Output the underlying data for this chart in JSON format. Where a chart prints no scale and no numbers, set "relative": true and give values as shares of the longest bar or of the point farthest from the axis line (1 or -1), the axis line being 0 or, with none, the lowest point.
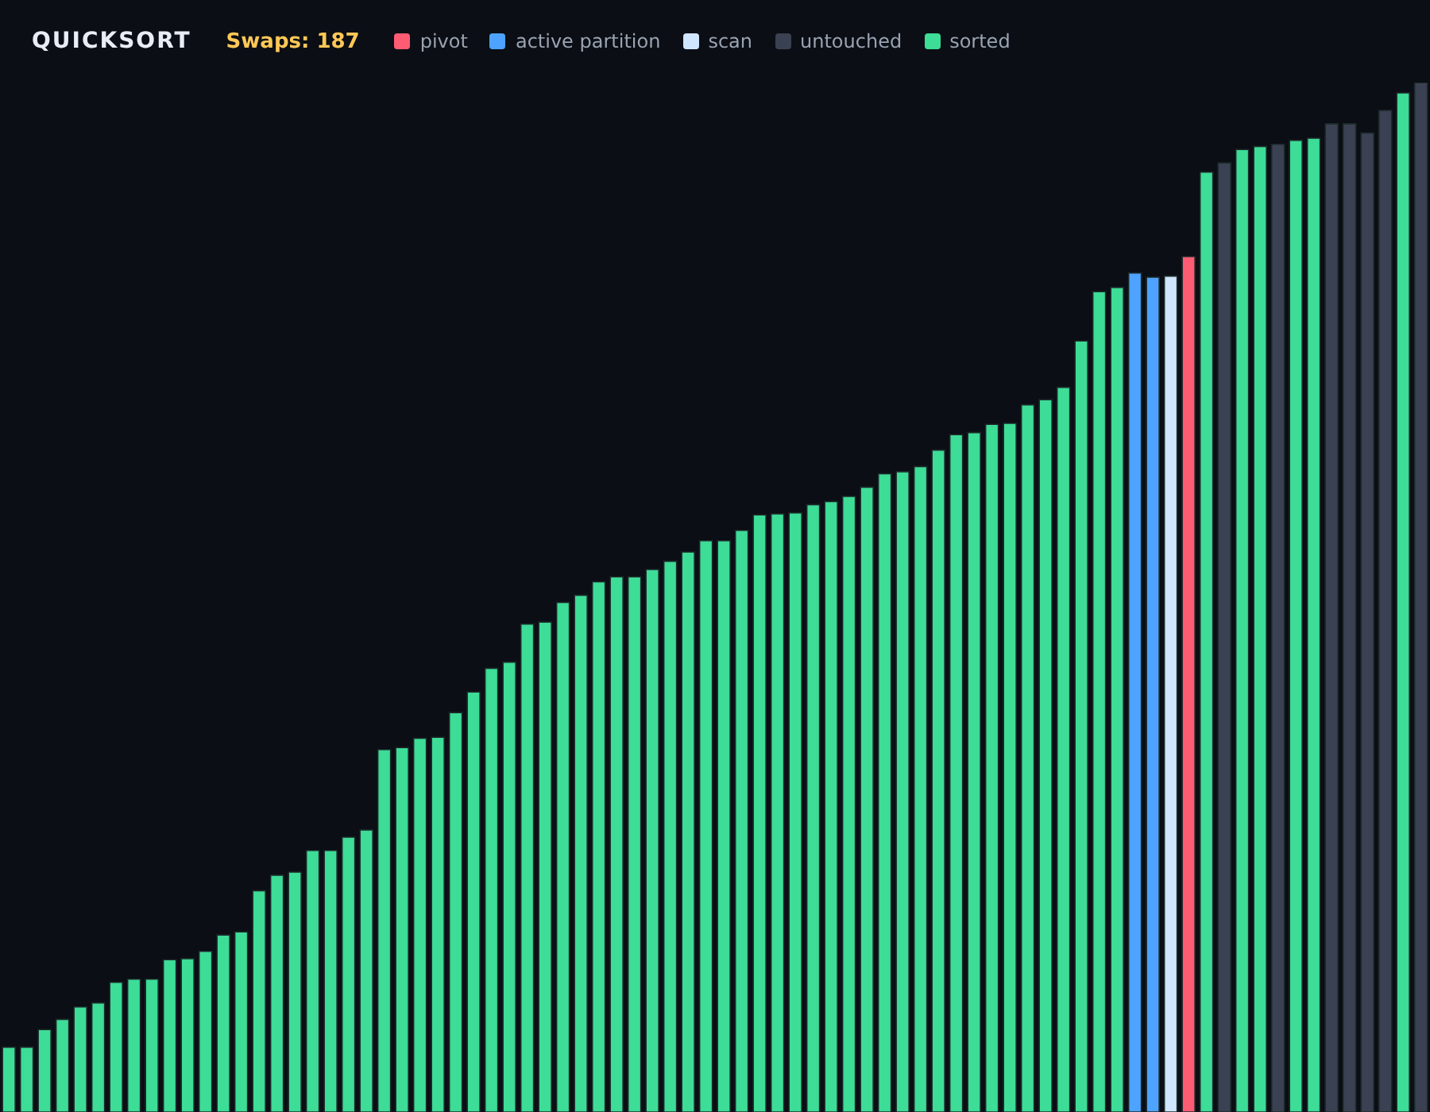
{
  "chart_data": {
    "type": "bar",
    "title": "QUICKSORT",
    "subtitle": "Swaps: 187",
    "relative": true,
    "stacked": true,
    "legend": "top left",
    "categories": [
      null,
      null,
      null,
      null,
      null,
      null,
      null,
      null,
      null,
      null,
      null,
      null,
      null,
      null,
      null,
      null,
      null,
      null,
      null,
      null,
      null,
      null,
      null,
      null,
      null,
      null,
      null,
      null,
      null,
      null,
      null,
      null,
      null,
      null,
      null,
      null,
      null,
      null,
      null,
      null,
      null,
      null,
      null,
      null,
      null,
      null,
      null,
      null,
      null,
      null,
      null,
      null,
      null,
      null,
      null,
      null,
      null,
      null,
      null,
      null,
      null,
      null,
      null,
      null,
      null,
      null,
      null,
      null,
      null,
      null,
      null,
      null,
      null,
      null,
      null,
      null,
      null,
      null,
      null,
      null
    ],
    "series": [
      {
        "name": "pivot",
        "color": "#ff5c74",
        "values": [
          null,
          null,
          null,
          null,
          null,
          null,
          null,
          null,
          null,
          null,
          null,
          null,
          null,
          null,
          null,
          null,
          null,
          null,
          null,
          null,
          null,
          null,
          null,
          null,
          null,
          null,
          null,
          null,
          null,
          null,
          null,
          null,
          null,
          null,
          null,
          null,
          null,
          null,
          null,
          null,
          null,
          null,
          null,
          null,
          null,
          null,
          null,
          null,
          null,
          null,
          null,
          null,
          null,
          null,
          null,
          null,
          null,
          null,
          null,
          null,
          null,
          null,
          null,
          null,
          null,
          null,
          0.831,
          null,
          null,
          null,
          null,
          null,
          null,
          null,
          null,
          null,
          null,
          null,
          null,
          null
        ]
      },
      {
        "name": "active partition",
        "color": "#4da3ff",
        "values": [
          null,
          null,
          null,
          null,
          null,
          null,
          null,
          null,
          null,
          null,
          null,
          null,
          null,
          null,
          null,
          null,
          null,
          null,
          null,
          null,
          null,
          null,
          null,
          null,
          null,
          null,
          null,
          null,
          null,
          null,
          null,
          null,
          null,
          null,
          null,
          null,
          null,
          null,
          null,
          null,
          null,
          null,
          null,
          null,
          null,
          null,
          null,
          null,
          null,
          null,
          null,
          null,
          null,
          null,
          null,
          null,
          null,
          null,
          null,
          null,
          null,
          null,
          null,
          0.815,
          0.811,
          null,
          null,
          null,
          null,
          null,
          null,
          null,
          null,
          null,
          null,
          null,
          null,
          null,
          null,
          null
        ]
      },
      {
        "name": "scan",
        "color": "#d0e6ff",
        "values": [
          null,
          null,
          null,
          null,
          null,
          null,
          null,
          null,
          null,
          null,
          null,
          null,
          null,
          null,
          null,
          null,
          null,
          null,
          null,
          null,
          null,
          null,
          null,
          null,
          null,
          null,
          null,
          null,
          null,
          null,
          null,
          null,
          null,
          null,
          null,
          null,
          null,
          null,
          null,
          null,
          null,
          null,
          null,
          null,
          null,
          null,
          null,
          null,
          null,
          null,
          null,
          null,
          null,
          null,
          null,
          null,
          null,
          null,
          null,
          null,
          null,
          null,
          null,
          null,
          null,
          0.812,
          null,
          null,
          null,
          null,
          null,
          null,
          null,
          null,
          null,
          null,
          null,
          null,
          null,
          null
        ]
      },
      {
        "name": "untouched",
        "color": "#3a4152",
        "values": [
          null,
          null,
          null,
          null,
          null,
          null,
          null,
          null,
          null,
          null,
          null,
          null,
          null,
          null,
          null,
          null,
          null,
          null,
          null,
          null,
          null,
          null,
          null,
          null,
          null,
          null,
          null,
          null,
          null,
          null,
          null,
          null,
          null,
          null,
          null,
          null,
          null,
          null,
          null,
          null,
          null,
          null,
          null,
          null,
          null,
          null,
          null,
          null,
          null,
          null,
          null,
          null,
          null,
          null,
          null,
          null,
          null,
          null,
          null,
          null,
          null,
          null,
          null,
          null,
          null,
          null,
          null,
          null,
          0.922,
          null,
          null,
          0.94,
          null,
          null,
          0.96,
          0.96,
          0.951,
          0.973,
          null,
          1
        ]
      },
      {
        "name": "sorted",
        "color": "#3ddc97",
        "values": [
          0.063,
          0.063,
          0.08,
          0.09,
          0.102,
          0.106,
          0.126,
          0.129,
          0.129,
          0.148,
          0.149,
          0.156,
          0.172,
          0.175,
          0.215,
          0.23,
          0.233,
          0.254,
          0.254,
          0.267,
          0.274,
          0.352,
          0.354,
          0.363,
          0.364,
          0.388,
          0.408,
          0.431,
          0.437,
          0.474,
          0.476,
          0.495,
          0.502,
          0.515,
          0.52,
          0.52,
          0.527,
          0.535,
          0.544,
          0.555,
          0.555,
          0.565,
          0.58,
          0.581,
          0.582,
          0.59,
          0.593,
          0.598,
          0.607,
          0.62,
          0.622,
          0.627,
          0.643,
          0.658,
          0.66,
          0.668,
          0.669,
          0.687,
          0.692,
          0.704,
          0.749,
          0.797,
          0.801,
          null,
          null,
          null,
          null,
          0.913,
          null,
          0.935,
          0.938,
          null,
          0.944,
          0.946,
          null,
          null,
          null,
          null,
          0.99,
          null
        ]
      }
    ]
  }
}
